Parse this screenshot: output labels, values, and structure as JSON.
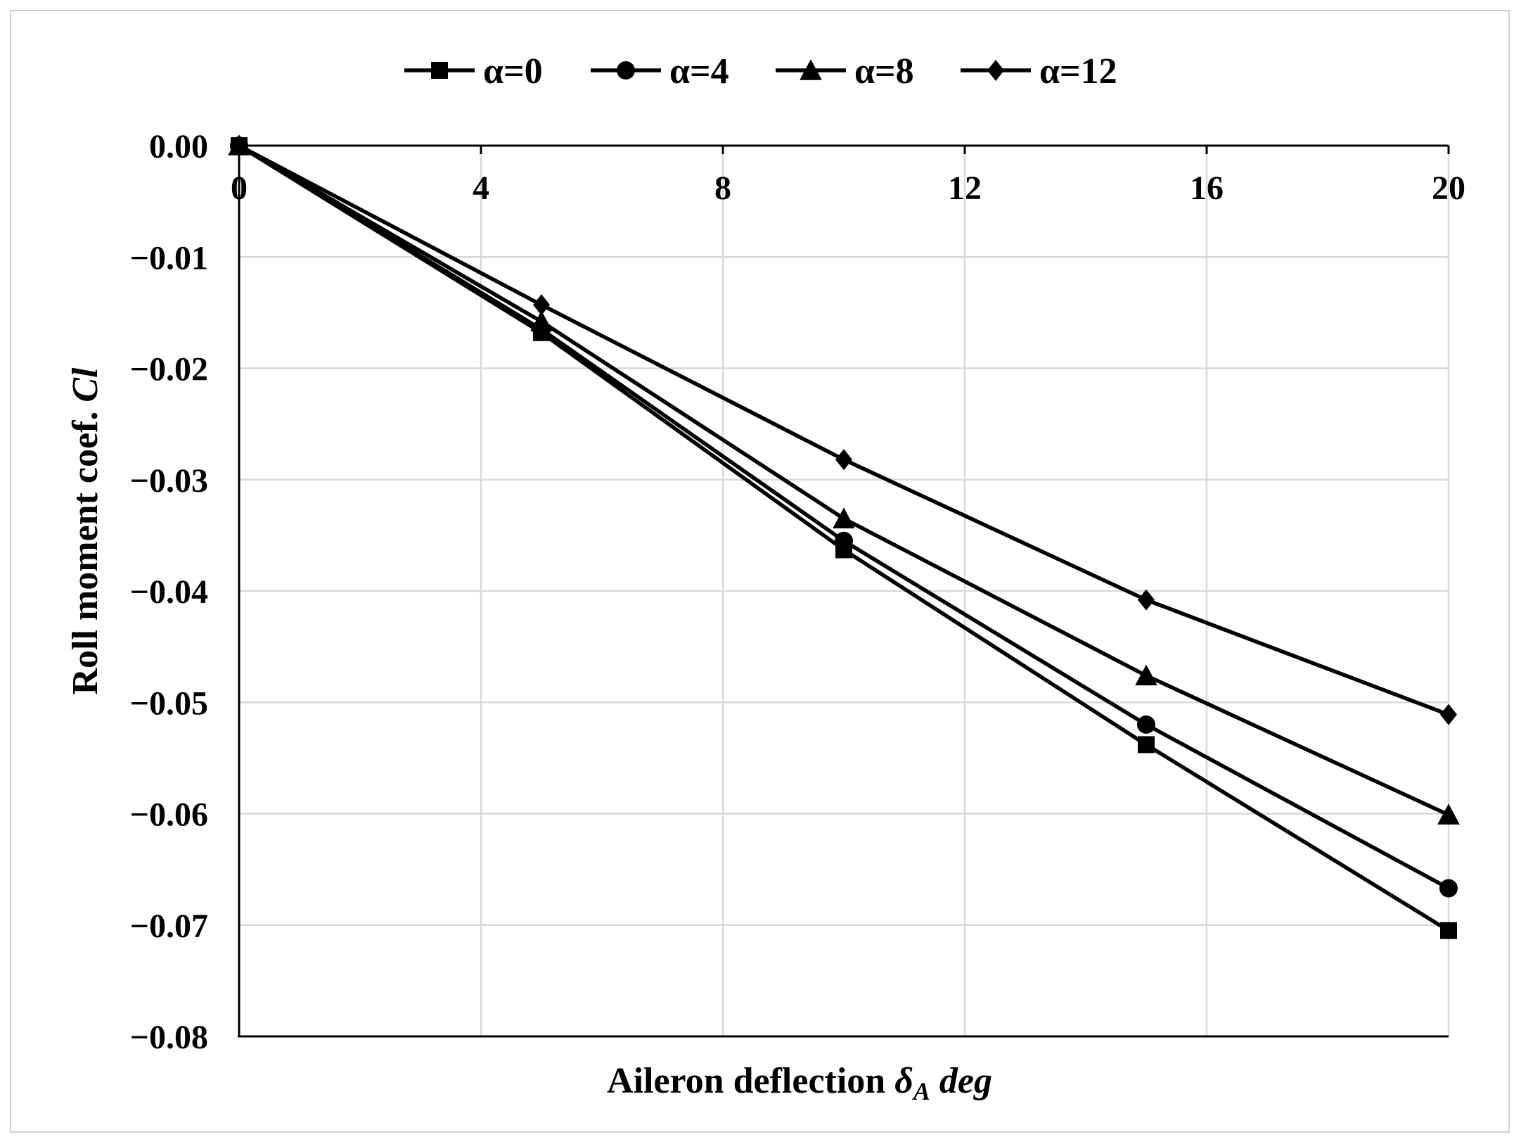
{
  "chart_data": {
    "type": "line",
    "xlabel": {
      "main": "Aileron deflection ",
      "symbol": "δ",
      "subscript": "A",
      "unit": " deg"
    },
    "ylabel": {
      "main": "Roll moment coef. ",
      "italic": "Cl"
    },
    "xlim": [
      0,
      20
    ],
    "ylim": [
      -0.08,
      0.0
    ],
    "x_ticks": [
      0,
      4,
      8,
      12,
      16,
      20
    ],
    "x_tick_labels": [
      "0",
      "4",
      "8",
      "12",
      "16",
      "20"
    ],
    "y_ticks": [
      0.0,
      -0.01,
      -0.02,
      -0.03,
      -0.04,
      -0.05,
      -0.06,
      -0.07,
      -0.08
    ],
    "y_tick_labels": [
      "0.00",
      "−0.01",
      "−0.02",
      "−0.03",
      "−0.04",
      "−0.05",
      "−0.06",
      "−0.07",
      "−0.08"
    ],
    "x_axis_position": "top",
    "grid": true,
    "legend_position": "top",
    "x": [
      0,
      5,
      10,
      15,
      20
    ],
    "series": [
      {
        "name": "α=0",
        "marker": "square",
        "values": [
          0.0,
          -0.0168,
          -0.0363,
          -0.0538,
          -0.0705
        ]
      },
      {
        "name": "α=4",
        "marker": "circle",
        "values": [
          0.0,
          -0.0165,
          -0.0355,
          -0.052,
          -0.0667
        ]
      },
      {
        "name": "α=8",
        "marker": "triangle",
        "values": [
          0.0,
          -0.0158,
          -0.0335,
          -0.0476,
          -0.0601
        ]
      },
      {
        "name": "α=12",
        "marker": "diamond",
        "values": [
          0.0,
          -0.0143,
          -0.0282,
          -0.0408,
          -0.0511
        ]
      }
    ],
    "colors": {
      "line": "#000000",
      "grid": "#d9d9d9",
      "frame": "#cfcfcf"
    }
  }
}
